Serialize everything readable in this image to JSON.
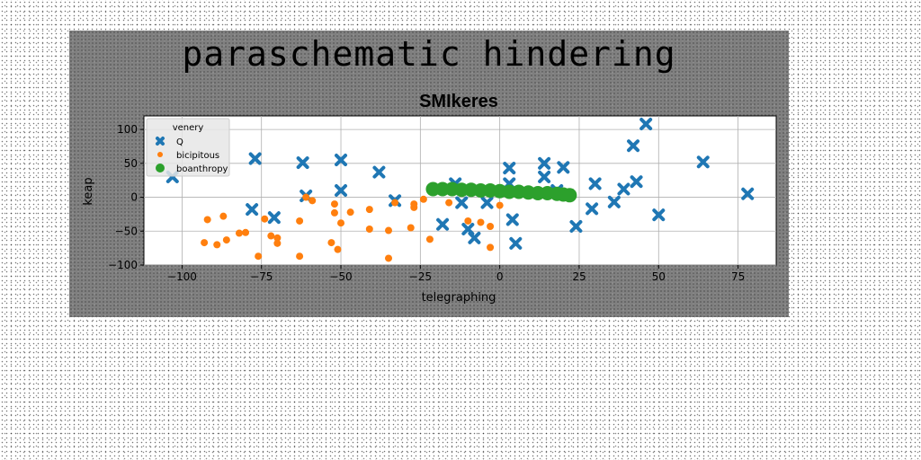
{
  "suptitle": "paraschematic hindering",
  "chart_data": {
    "type": "scatter",
    "title": "SMIkeres",
    "xlabel": "telegraphing",
    "ylabel": "keap",
    "xlim": [
      -112,
      87
    ],
    "ylim": [
      -100,
      120
    ],
    "xticks": [
      -100,
      -75,
      -50,
      -25,
      0,
      25,
      50,
      75
    ],
    "xtick_labels": [
      "−100",
      "−75",
      "−50",
      "−25",
      "0",
      "25",
      "50",
      "75"
    ],
    "yticks": [
      -100,
      -50,
      0,
      50,
      100
    ],
    "ytick_labels": [
      "−100",
      "−50",
      "0",
      "50",
      "100"
    ],
    "grid": true,
    "legend": {
      "title": "venery",
      "placement": "upper-left",
      "entries": [
        "Q",
        "bicipitous",
        "boanthropy"
      ]
    },
    "colors": {
      "Q": "#1f77b4",
      "bicipitous": "#ff7f0e",
      "boanthropy": "#2ca02c"
    },
    "series": [
      {
        "name": "Q",
        "marker": "x",
        "points": [
          [
            -103,
            30
          ],
          [
            -77,
            57
          ],
          [
            -78,
            -18
          ],
          [
            -71,
            -30
          ],
          [
            -62,
            51
          ],
          [
            -61,
            2
          ],
          [
            -50,
            55
          ],
          [
            -50,
            10
          ],
          [
            -38,
            37
          ],
          [
            -33,
            -5
          ],
          [
            -18,
            -40
          ],
          [
            -14,
            20
          ],
          [
            -12,
            -8
          ],
          [
            -10,
            -47
          ],
          [
            -8,
            -60
          ],
          [
            -4,
            -8
          ],
          [
            3,
            43
          ],
          [
            3,
            20
          ],
          [
            4,
            -33
          ],
          [
            5,
            -68
          ],
          [
            14,
            50
          ],
          [
            14,
            30
          ],
          [
            18,
            10
          ],
          [
            20,
            44
          ],
          [
            24,
            -43
          ],
          [
            29,
            -17
          ],
          [
            30,
            20
          ],
          [
            36,
            -7
          ],
          [
            39,
            12
          ],
          [
            42,
            76
          ],
          [
            43,
            23
          ],
          [
            46,
            108
          ],
          [
            50,
            -26
          ],
          [
            64,
            52
          ],
          [
            78,
            5
          ]
        ]
      },
      {
        "name": "bicipitous",
        "marker": "o",
        "points": [
          [
            -93,
            -67
          ],
          [
            -92,
            -33
          ],
          [
            -89,
            -70
          ],
          [
            -87,
            -28
          ],
          [
            -86,
            -63
          ],
          [
            -82,
            -53
          ],
          [
            -80,
            -52
          ],
          [
            -76,
            -87
          ],
          [
            -74,
            -32
          ],
          [
            -72,
            -57
          ],
          [
            -70,
            -68
          ],
          [
            -70,
            -60
          ],
          [
            -63,
            -87
          ],
          [
            -63,
            -35
          ],
          [
            -61,
            0
          ],
          [
            -59,
            -5
          ],
          [
            -53,
            -67
          ],
          [
            -52,
            -10
          ],
          [
            -52,
            -23
          ],
          [
            -51,
            -77
          ],
          [
            -50,
            -38
          ],
          [
            -47,
            -22
          ],
          [
            -41,
            -18
          ],
          [
            -41,
            -47
          ],
          [
            -35,
            -49
          ],
          [
            -35,
            -90
          ],
          [
            -33,
            -8
          ],
          [
            -28,
            -45
          ],
          [
            -27,
            -10
          ],
          [
            -27,
            -15
          ],
          [
            -24,
            -3
          ],
          [
            -22,
            -62
          ],
          [
            -16,
            -8
          ],
          [
            -10,
            -35
          ],
          [
            -6,
            -37
          ],
          [
            -3,
            -43
          ],
          [
            -3,
            -74
          ],
          [
            0,
            -12
          ]
        ]
      },
      {
        "name": "boanthropy",
        "marker": "o-large",
        "points": [
          [
            -21,
            12
          ],
          [
            -18,
            12
          ],
          [
            -15,
            12
          ],
          [
            -12,
            11
          ],
          [
            -9,
            11
          ],
          [
            -6,
            10
          ],
          [
            -3,
            10
          ],
          [
            0,
            9
          ],
          [
            3,
            8
          ],
          [
            6,
            8
          ],
          [
            9,
            7
          ],
          [
            12,
            6
          ],
          [
            15,
            6
          ],
          [
            18,
            5
          ],
          [
            20,
            4
          ],
          [
            22,
            3
          ]
        ]
      }
    ]
  }
}
